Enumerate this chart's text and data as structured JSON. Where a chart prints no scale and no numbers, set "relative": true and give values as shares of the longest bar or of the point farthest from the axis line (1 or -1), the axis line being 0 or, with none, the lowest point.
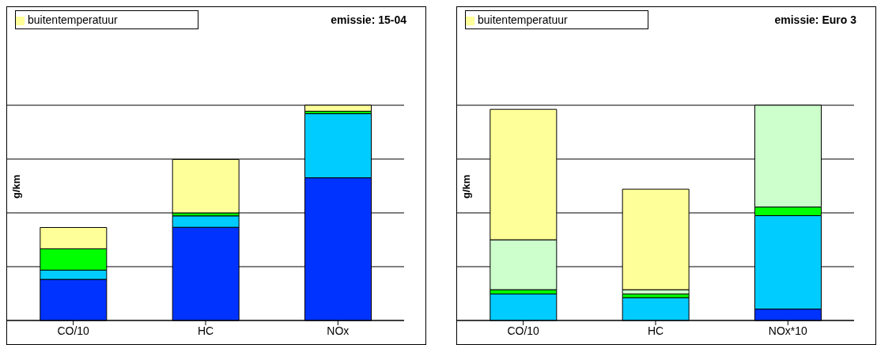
{
  "chart_data": [
    {
      "type": "bar",
      "title": "emissie: 15-04",
      "ylabel": "g/km",
      "categories": [
        "CO/10",
        "HC",
        "NOx"
      ],
      "stacked": true,
      "relative": true,
      "grid": "y",
      "legend": "top left",
      "series": [
        {
          "color": "#0033ff",
          "values": [
            0.191,
            0.433,
            0.663
          ]
        },
        {
          "color": "#00ccff",
          "values": [
            0.043,
            0.053,
            0.298
          ]
        },
        {
          "color": "#00ff00",
          "values": [
            0.099,
            0.014,
            0.011
          ]
        },
        {
          "name": "buitentemperatuur",
          "color": "#ffff99",
          "values": [
            0.099,
            0.248,
            0.028
          ]
        }
      ]
    },
    {
      "type": "bar",
      "title": "emissie: Euro 3",
      "ylabel": "g/km",
      "categories": [
        "CO/10",
        "HC",
        "NOx*10"
      ],
      "stacked": true,
      "relative": true,
      "grid": "y",
      "legend": "top left",
      "series": [
        {
          "color": "#0033ff",
          "values": [
            0,
            0,
            0.053
          ]
        },
        {
          "color": "#00ccff",
          "values": [
            0.123,
            0.106,
            0.434
          ]
        },
        {
          "color": "#00ff00",
          "values": [
            0.02,
            0.017,
            0.04
          ]
        },
        {
          "color": "#ccffcc",
          "values": [
            0.232,
            0.02,
            0.473
          ]
        },
        {
          "name": "buitentemperatuur",
          "color": "#ffff99",
          "values": [
            0.606,
            0.467,
            0
          ]
        }
      ]
    }
  ]
}
